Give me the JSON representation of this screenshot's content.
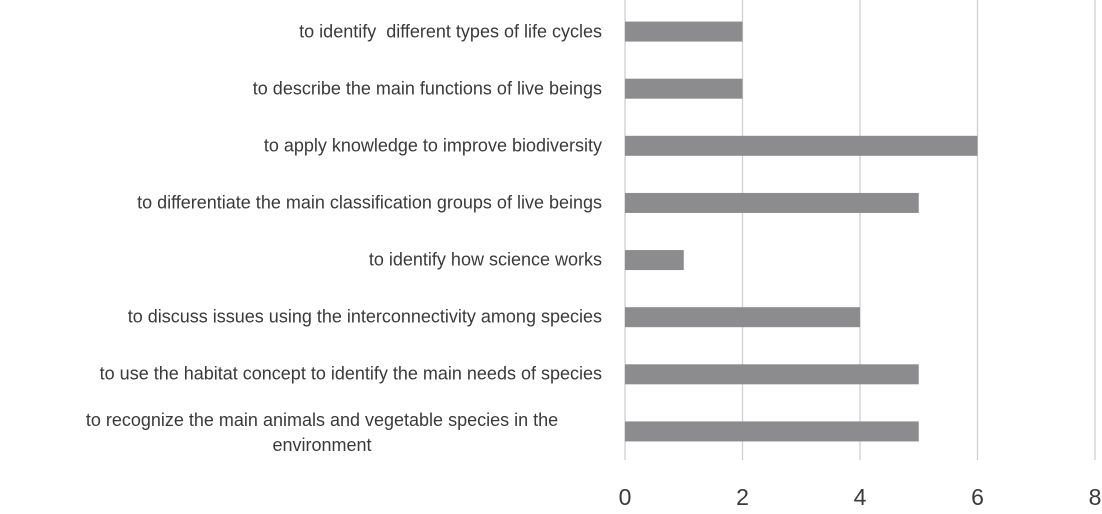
{
  "chart_data": {
    "type": "bar",
    "orientation": "horizontal",
    "categories": [
      "to identify  different types of life cycles",
      "to describe the main functions of live beings",
      "to apply knowledge to improve biodiversity",
      "to differentiate the main classification groups of live beings",
      "to identify how science works",
      "to discuss issues using the interconnectivity among species",
      "to use the habitat concept to identify the main needs of species",
      "to recognize the main animals and vegetable species in the environment"
    ],
    "values": [
      2,
      2,
      6,
      5,
      1,
      4,
      5,
      5
    ],
    "color": "#8c8c8e",
    "xlim": [
      0,
      8
    ],
    "xticks": [
      0,
      2,
      4,
      6,
      8
    ],
    "grid": true
  }
}
